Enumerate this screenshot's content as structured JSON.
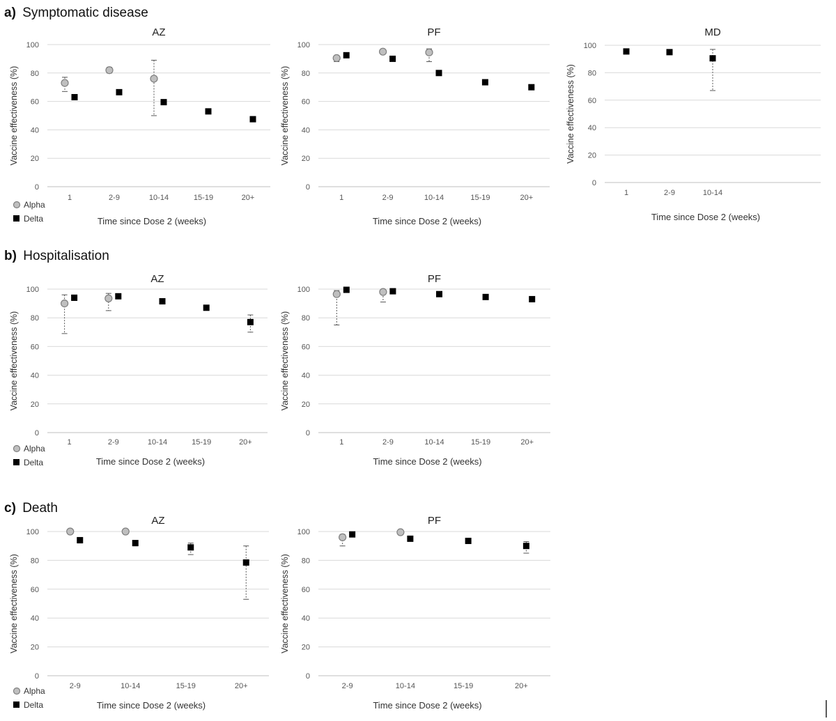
{
  "sections": [
    {
      "letter": "a)",
      "title": "Symptomatic disease"
    },
    {
      "letter": "b)",
      "title": "Hospitalisation"
    },
    {
      "letter": "c)",
      "title": "Death"
    }
  ],
  "colors": {
    "alpha_fill": "#bfbfbf",
    "alpha_stroke": "#7f7f7f",
    "delta": "#000000",
    "grid": "#d9d9d9"
  },
  "chart_data": [
    {
      "type": "scatter",
      "section": 0,
      "title": "AZ",
      "xlabel": "Time since Dose 2 (weeks)",
      "ylabel": "Vaccine effectiveness (%)",
      "ylim": [
        0,
        100
      ],
      "yticks": [
        0,
        20,
        40,
        60,
        80,
        100
      ],
      "grid": true,
      "categories": [
        "1",
        "2-9",
        "10-14",
        "15-19",
        "20+"
      ],
      "legend": [
        "Alpha",
        "Delta"
      ],
      "series": [
        {
          "name": "Alpha",
          "points": [
            {
              "x": "1",
              "y": 73,
              "lo": 67,
              "hi": 77
            },
            {
              "x": "2-9",
              "y": 82,
              "lo": 80,
              "hi": 84
            },
            {
              "x": "10-14",
              "y": 76,
              "lo": 50,
              "hi": 89
            }
          ]
        },
        {
          "name": "Delta",
          "points": [
            {
              "x": "1",
              "y": 63,
              "lo": 62,
              "hi": 64
            },
            {
              "x": "2-9",
              "y": 66.5,
              "lo": 66,
              "hi": 67
            },
            {
              "x": "10-14",
              "y": 59.5,
              "lo": 59,
              "hi": 60
            },
            {
              "x": "15-19",
              "y": 53,
              "lo": 52.5,
              "hi": 53.5
            },
            {
              "x": "20+",
              "y": 47.5,
              "lo": 46,
              "hi": 48.5
            }
          ]
        }
      ]
    },
    {
      "type": "scatter",
      "section": 0,
      "title": "PF",
      "xlabel": "Time since Dose 2 (weeks)",
      "ylabel": "Vaccine effectiveness (%)",
      "ylim": [
        0,
        100
      ],
      "yticks": [
        0,
        20,
        40,
        60,
        80,
        100
      ],
      "grid": true,
      "categories": [
        "1",
        "2-9",
        "10-14",
        "15-19",
        "20+"
      ],
      "legend": [],
      "series": [
        {
          "name": "Alpha",
          "points": [
            {
              "x": "1",
              "y": 90.5,
              "lo": 88,
              "hi": 92
            },
            {
              "x": "2-9",
              "y": 95,
              "lo": 94,
              "hi": 95.5
            },
            {
              "x": "10-14",
              "y": 94.5,
              "lo": 88,
              "hi": 97
            }
          ]
        },
        {
          "name": "Delta",
          "points": [
            {
              "x": "1",
              "y": 92.5,
              "lo": 92,
              "hi": 93
            },
            {
              "x": "2-9",
              "y": 90,
              "lo": 89.5,
              "hi": 90.5
            },
            {
              "x": "10-14",
              "y": 80,
              "lo": 79.5,
              "hi": 80.5
            },
            {
              "x": "15-19",
              "y": 73.5,
              "lo": 73,
              "hi": 74
            },
            {
              "x": "20+",
              "y": 70,
              "lo": 69.5,
              "hi": 70.5
            }
          ]
        }
      ]
    },
    {
      "type": "scatter",
      "section": 0,
      "title": "MD",
      "xlabel": "Time since Dose 2 (weeks)",
      "ylabel": "Vaccine effectiveness (%)",
      "ylim": [
        0,
        100
      ],
      "yticks": [
        0,
        20,
        40,
        60,
        80,
        100
      ],
      "grid": true,
      "categories": [
        "1",
        "2-9",
        "10-14",
        "",
        ""
      ],
      "legend": [],
      "series": [
        {
          "name": "Delta",
          "points": [
            {
              "x": "1",
              "y": 95.5,
              "lo": 95,
              "hi": 96
            },
            {
              "x": "2-9",
              "y": 95,
              "lo": 94.5,
              "hi": 95.5
            },
            {
              "x": "10-14",
              "y": 90.5,
              "lo": 67,
              "hi": 97
            }
          ]
        }
      ]
    },
    {
      "type": "scatter",
      "section": 1,
      "title": "AZ",
      "xlabel": "Time since Dose 2 (weeks)",
      "ylabel": "Vaccine effectiveness (%)",
      "ylim": [
        0,
        100
      ],
      "yticks": [
        0,
        20,
        40,
        60,
        80,
        100
      ],
      "grid": true,
      "categories": [
        "1",
        "2-9",
        "10-14",
        "15-19",
        "20+"
      ],
      "legend": [
        "Alpha",
        "Delta"
      ],
      "series": [
        {
          "name": "Alpha",
          "points": [
            {
              "x": "1",
              "y": 90,
              "lo": 69,
              "hi": 96
            },
            {
              "x": "2-9",
              "y": 93.5,
              "lo": 85,
              "hi": 97
            }
          ]
        },
        {
          "name": "Delta",
          "points": [
            {
              "x": "1",
              "y": 94,
              "lo": 92,
              "hi": 95
            },
            {
              "x": "2-9",
              "y": 95,
              "lo": 94.5,
              "hi": 95.5
            },
            {
              "x": "10-14",
              "y": 91.5,
              "lo": 91,
              "hi": 92
            },
            {
              "x": "15-19",
              "y": 87,
              "lo": 86.5,
              "hi": 87.5
            },
            {
              "x": "20+",
              "y": 77,
              "lo": 70,
              "hi": 82
            }
          ]
        }
      ]
    },
    {
      "type": "scatter",
      "section": 1,
      "title": "PF",
      "xlabel": "Time since Dose 2 (weeks)",
      "ylabel": "Vaccine effectiveness (%)",
      "ylim": [
        0,
        100
      ],
      "yticks": [
        0,
        20,
        40,
        60,
        80,
        100
      ],
      "grid": true,
      "categories": [
        "1",
        "2-9",
        "10-14",
        "15-19",
        "20+"
      ],
      "legend": [],
      "series": [
        {
          "name": "Alpha",
          "points": [
            {
              "x": "1",
              "y": 96.5,
              "lo": 75,
              "hi": 99
            },
            {
              "x": "2-9",
              "y": 98,
              "lo": 91,
              "hi": 99
            }
          ]
        },
        {
          "name": "Delta",
          "points": [
            {
              "x": "1",
              "y": 99.5,
              "lo": 99,
              "hi": 100
            },
            {
              "x": "2-9",
              "y": 98.5,
              "lo": 98,
              "hi": 99
            },
            {
              "x": "10-14",
              "y": 96.5,
              "lo": 96,
              "hi": 97
            },
            {
              "x": "15-19",
              "y": 94.5,
              "lo": 94,
              "hi": 95
            },
            {
              "x": "20+",
              "y": 93,
              "lo": 91,
              "hi": 94
            }
          ]
        }
      ]
    },
    {
      "type": "scatter",
      "section": 2,
      "title": "AZ",
      "xlabel": "Time since Dose 2 (weeks)",
      "ylabel": "Vaccine effectiveness (%)",
      "ylim": [
        0,
        100
      ],
      "yticks": [
        0,
        20,
        40,
        60,
        80,
        100
      ],
      "grid": true,
      "categories": [
        "2-9",
        "10-14",
        "15-19",
        "20+"
      ],
      "legend": [
        "Alpha",
        "Delta"
      ],
      "series": [
        {
          "name": "Alpha",
          "points": [
            {
              "x": "2-9",
              "y": 100,
              "lo": 100,
              "hi": 100
            },
            {
              "x": "10-14",
              "y": 100,
              "lo": 100,
              "hi": 100
            }
          ]
        },
        {
          "name": "Delta",
          "points": [
            {
              "x": "2-9",
              "y": 94,
              "lo": 92,
              "hi": 95
            },
            {
              "x": "10-14",
              "y": 92,
              "lo": 90,
              "hi": 93.5
            },
            {
              "x": "15-19",
              "y": 89,
              "lo": 84,
              "hi": 92
            },
            {
              "x": "20+",
              "y": 78.5,
              "lo": 53,
              "hi": 90
            }
          ]
        }
      ]
    },
    {
      "type": "scatter",
      "section": 2,
      "title": "PF",
      "xlabel": "Time since Dose 2 (weeks)",
      "ylabel": "Vaccine effectiveness (%)",
      "ylim": [
        0,
        100
      ],
      "yticks": [
        0,
        20,
        40,
        60,
        80,
        100
      ],
      "grid": true,
      "categories": [
        "2-9",
        "10-14",
        "15-19",
        "20+"
      ],
      "legend": [],
      "series": [
        {
          "name": "Alpha",
          "points": [
            {
              "x": "2-9",
              "y": 96,
              "lo": 90,
              "hi": 98
            },
            {
              "x": "10-14",
              "y": 99.5,
              "lo": 99.5,
              "hi": 99.5
            }
          ]
        },
        {
          "name": "Delta",
          "points": [
            {
              "x": "2-9",
              "y": 98,
              "lo": 97,
              "hi": 99
            },
            {
              "x": "10-14",
              "y": 95,
              "lo": 94,
              "hi": 96
            },
            {
              "x": "15-19",
              "y": 93.5,
              "lo": 92.5,
              "hi": 94.5
            },
            {
              "x": "20+",
              "y": 90,
              "lo": 85,
              "hi": 93
            }
          ]
        }
      ]
    }
  ]
}
